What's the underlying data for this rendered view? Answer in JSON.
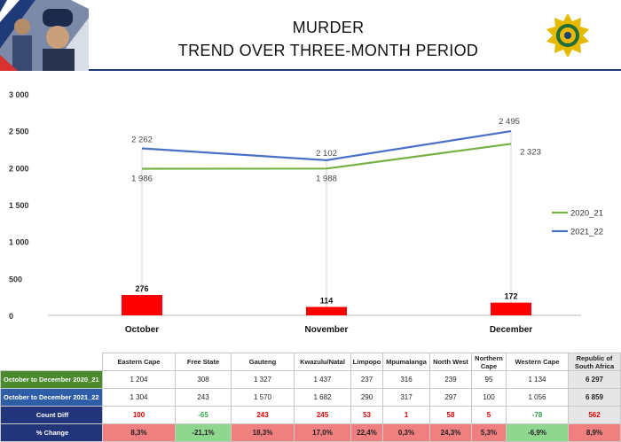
{
  "header": {
    "title_line1": "MURDER",
    "title_line2": "TREND OVER THREE-MONTH PERIOD"
  },
  "colors": {
    "series_2020_21": "#77b043",
    "series_2021_22": "#4a6fc4",
    "bars": "#ff0000",
    "header_rule": "#1f3b7a"
  },
  "chart_data": {
    "type": "line",
    "categories": [
      "October",
      "November",
      "December"
    ],
    "series": [
      {
        "name": "2020_21",
        "values": [
          1986,
          1988,
          2323
        ],
        "labels": [
          "1 986",
          "1 988",
          "2 323"
        ]
      },
      {
        "name": "2021_22",
        "values": [
          2262,
          2102,
          2495
        ],
        "labels": [
          "2 262",
          "2 102",
          "2 495"
        ]
      }
    ],
    "bars": {
      "values": [
        276,
        114,
        172
      ],
      "labels": [
        "276",
        "114",
        "172"
      ]
    },
    "yticks": [
      "3 000",
      "2 500",
      "2 000",
      "1 500",
      "1 000",
      "500",
      "0"
    ],
    "ytick_values": [
      3000,
      2500,
      2000,
      1500,
      1000,
      500,
      0
    ],
    "ylim": [
      -300,
      3200
    ],
    "legend_position": "right",
    "grid": false
  },
  "table": {
    "columns": [
      "Eastern Cape",
      "Free State",
      "Gauteng",
      "Kwazulu/Natal",
      "Limpopo",
      "Mpumalanga",
      "North West",
      "Northern Cape",
      "Western Cape",
      "Republic of South Africa"
    ],
    "rows": [
      {
        "label": "October to December 2020_21",
        "values": [
          "1 204",
          "308",
          "1 327",
          "1 437",
          "237",
          "316",
          "239",
          "95",
          "1 134",
          "6 297"
        ]
      },
      {
        "label": "October to December 2021_22",
        "values": [
          "1 304",
          "243",
          "1 570",
          "1 682",
          "290",
          "317",
          "297",
          "100",
          "1 056",
          "6 859"
        ]
      },
      {
        "label": "Count Diff",
        "values": [
          "100",
          "-65",
          "243",
          "245",
          "53",
          "1",
          "58",
          "5",
          "-78",
          "562"
        ]
      },
      {
        "label": "% Change",
        "values": [
          "8,3%",
          "-21,1%",
          "18,3%",
          "17,0%",
          "22,4%",
          "0,3%",
          "24,3%",
          "5,3%",
          "-6,9%",
          "8,9%"
        ]
      }
    ]
  }
}
